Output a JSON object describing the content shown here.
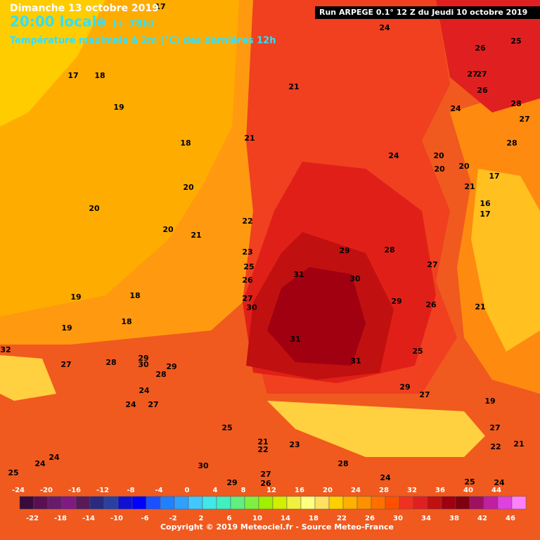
{
  "header": {
    "date": "Dimanche 13 octobre 2019",
    "time": "20:00 locale",
    "lead": "(+ 78h)",
    "field": "Température maximale à 2m (°C) des dernières 12h",
    "run": "Run ARPEGE 0.1° 12 Z du Jeudi 10 octobre 2019"
  },
  "map_labels": [
    17,
    17,
    18,
    21,
    24,
    26,
    25,
    27,
    27,
    26,
    24,
    28,
    27,
    28,
    19,
    18,
    21,
    20,
    24,
    20,
    20,
    20,
    20,
    20,
    21,
    22,
    21,
    17,
    16,
    17,
    23,
    29,
    28,
    27,
    25,
    31,
    30,
    26,
    19,
    18,
    18,
    27,
    30,
    29,
    26,
    21,
    19,
    31,
    25,
    31,
    32,
    27,
    28,
    29,
    30,
    29,
    28,
    29,
    27,
    24,
    24,
    27,
    25,
    21,
    22,
    23,
    19,
    27,
    21,
    22,
    25,
    24,
    24,
    30,
    29,
    27,
    26,
    28,
    24,
    25,
    24
  ],
  "legend": {
    "ticks_top": [
      -24,
      -20,
      -16,
      -12,
      -8,
      -4,
      0,
      4,
      8,
      12,
      16,
      20,
      24,
      28,
      32,
      36,
      40,
      44
    ],
    "ticks_bottom": [
      -22,
      -18,
      -14,
      -10,
      -6,
      -2,
      2,
      6,
      10,
      14,
      18,
      22,
      26,
      30,
      34,
      38,
      42,
      46
    ],
    "colors": [
      "#3a0a3a",
      "#5a1050",
      "#6a1a6a",
      "#801a80",
      "#5a1a5a",
      "#2a2a80",
      "#2a40a0",
      "#1010d0",
      "#0000ff",
      "#1a50ff",
      "#2080ff",
      "#30a0ff",
      "#40c8ff",
      "#40e8e8",
      "#40f0c0",
      "#60f080",
      "#80f040",
      "#a0f000",
      "#d0f000",
      "#f0f040",
      "#ffff80",
      "#ffe060",
      "#ffd000",
      "#ffb000",
      "#ff9000",
      "#ff7000",
      "#ff5000",
      "#f03020",
      "#e02020",
      "#c01010",
      "#a00010",
      "#800010",
      "#a01060",
      "#c020a0",
      "#e040e0",
      "#ff80ff"
    ]
  },
  "copyright": "Copyright © 2019 Meteociel.fr - Source Meteo-France"
}
